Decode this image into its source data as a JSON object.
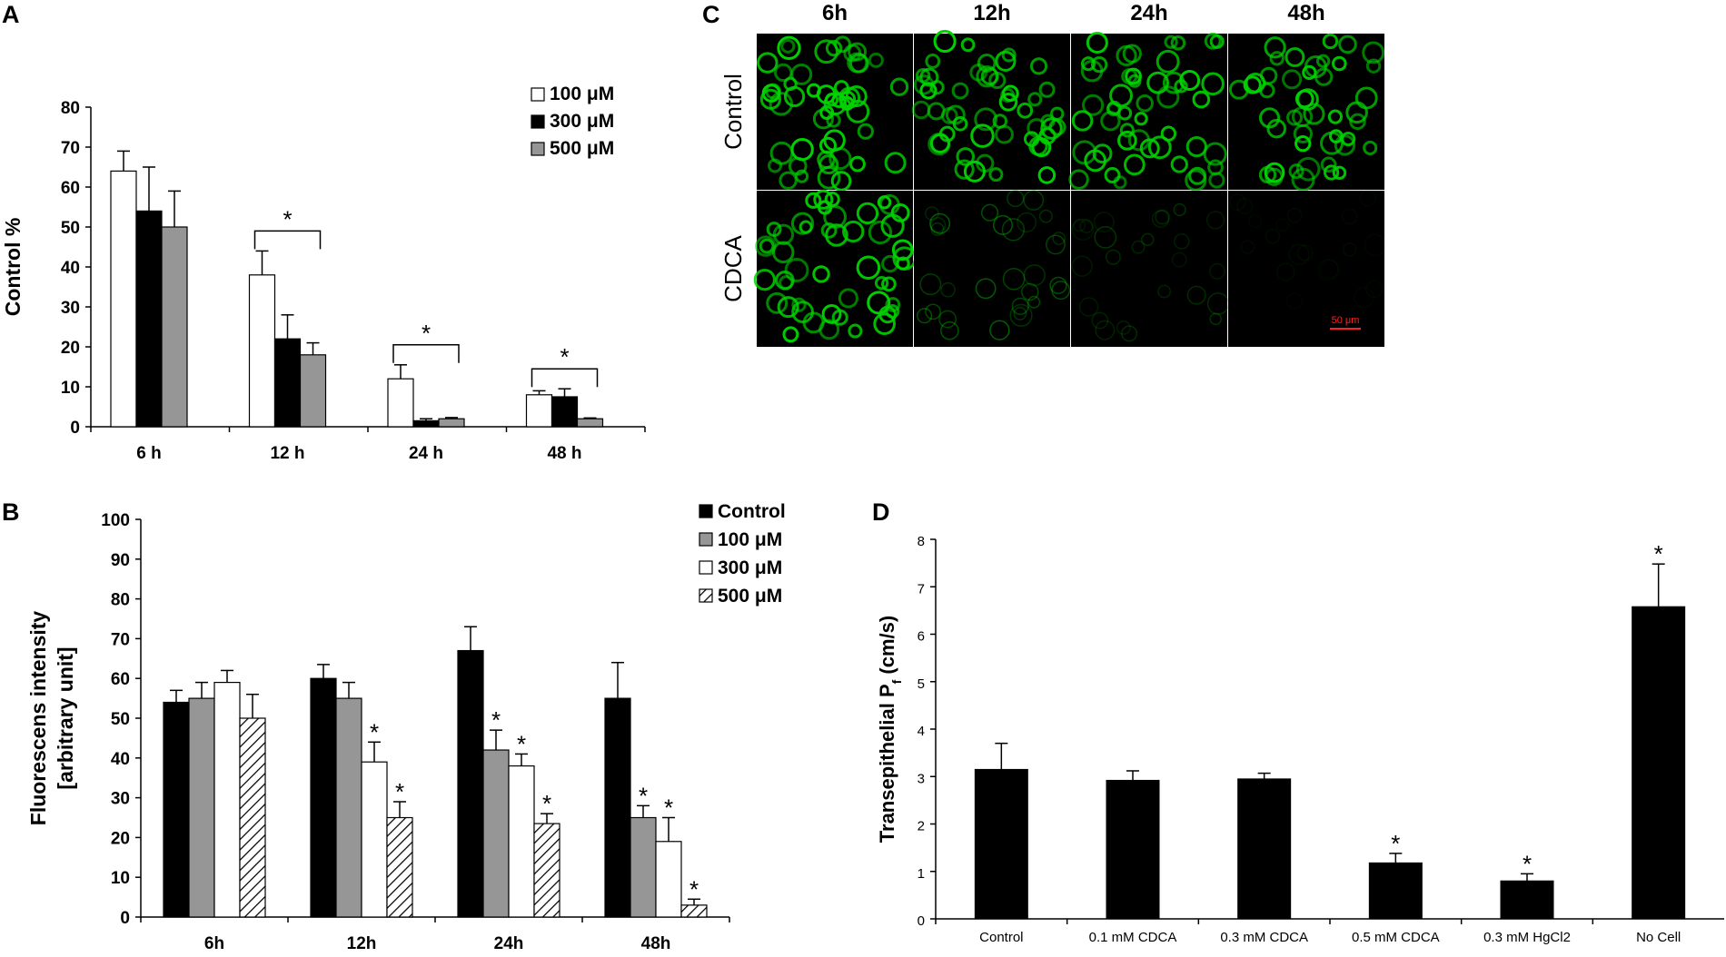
{
  "chart_data": [
    {
      "panel": "A",
      "type": "bar",
      "ylabel": "Control %",
      "ylim": [
        0,
        80
      ],
      "yticks": [
        0,
        10,
        20,
        30,
        40,
        50,
        60,
        70,
        80
      ],
      "categories": [
        "6 h",
        "12 h",
        "24 h",
        "48 h"
      ],
      "legend_position": "top-right",
      "series": [
        {
          "name": "100 μM",
          "color": "#ffffff",
          "values": [
            64,
            38,
            12,
            8
          ],
          "errors": [
            5,
            6,
            3.5,
            1
          ]
        },
        {
          "name": "300 μM",
          "color": "#000000",
          "values": [
            54,
            22,
            1.5,
            7.5
          ],
          "errors": [
            11,
            6,
            0.5,
            2
          ]
        },
        {
          "name": "500 μM",
          "color": "#969696",
          "values": [
            50,
            18,
            2,
            2
          ],
          "errors": [
            9,
            3,
            0.3,
            0.2
          ]
        }
      ],
      "annotations": [
        {
          "text": "*",
          "category": "12 h",
          "type": "bracket"
        },
        {
          "text": "*",
          "category": "24 h",
          "type": "bracket"
        },
        {
          "text": "*",
          "category": "48 h",
          "type": "bracket"
        }
      ]
    },
    {
      "panel": "B",
      "type": "bar",
      "ylabel": "Fluorescens intensity",
      "ylabel2": "[arbitrary unit]",
      "ylim": [
        0,
        100
      ],
      "yticks": [
        0,
        10,
        20,
        30,
        40,
        50,
        60,
        70,
        80,
        90,
        100
      ],
      "categories": [
        "6h",
        "12h",
        "24h",
        "48h"
      ],
      "legend_position": "top-right",
      "series": [
        {
          "name": "Control",
          "color": "#000000",
          "pattern": "solid",
          "values": [
            54,
            60,
            67,
            55
          ],
          "errors": [
            3,
            3.5,
            6,
            9
          ],
          "stars": [
            false,
            false,
            false,
            false
          ]
        },
        {
          "name": "100 μM",
          "color": "#969696",
          "pattern": "solid",
          "values": [
            55,
            55,
            42,
            25
          ],
          "errors": [
            4,
            4,
            5,
            3
          ],
          "stars": [
            false,
            false,
            true,
            true
          ]
        },
        {
          "name": "300 μM",
          "color": "#ffffff",
          "pattern": "solid",
          "values": [
            59,
            39,
            38,
            19
          ],
          "errors": [
            3,
            5,
            3,
            6
          ],
          "stars": [
            false,
            true,
            true,
            true
          ]
        },
        {
          "name": "500 μM",
          "color": "#ffffff",
          "pattern": "hatch",
          "values": [
            50,
            25,
            23.5,
            3
          ],
          "errors": [
            6,
            4,
            2.5,
            1.5
          ],
          "stars": [
            false,
            true,
            true,
            true
          ]
        }
      ]
    },
    {
      "panel": "D",
      "type": "bar",
      "ylabel": "Transepithelial P",
      "ylabel_sub": "f",
      "ylabel_unit": " (cm/s)",
      "ylim": [
        0,
        8
      ],
      "yticks": [
        0,
        1,
        2,
        3,
        4,
        5,
        6,
        7,
        8
      ],
      "categories": [
        "Control",
        "0.1 mM CDCA",
        "0.3 mM CDCA",
        "0.5 mM CDCA",
        "0.3 mM HgCl2",
        "No Cell"
      ],
      "series": [
        {
          "name": "",
          "color": "#000000",
          "values": [
            3.15,
            2.92,
            2.95,
            1.18,
            0.8,
            6.58
          ],
          "errors": [
            0.55,
            0.2,
            0.12,
            0.2,
            0.15,
            0.9
          ],
          "stars": [
            false,
            false,
            false,
            true,
            true,
            true
          ]
        }
      ]
    }
  ],
  "panels": {
    "A": {
      "letter": "A"
    },
    "B": {
      "letter": "B"
    },
    "C": {
      "letter": "C",
      "columns": [
        "6h",
        "12h",
        "24h",
        "48h"
      ],
      "rows": [
        "Control",
        "CDCA"
      ],
      "signal": [
        [
          0.95,
          0.95,
          0.95,
          0.8
        ],
        [
          0.9,
          0.35,
          0.2,
          0.05
        ]
      ],
      "scale_bar": "50 μm",
      "stain_color": "#00d200",
      "scale_color": "#ff2020"
    },
    "D": {
      "letter": "D"
    }
  },
  "star_text": "*"
}
